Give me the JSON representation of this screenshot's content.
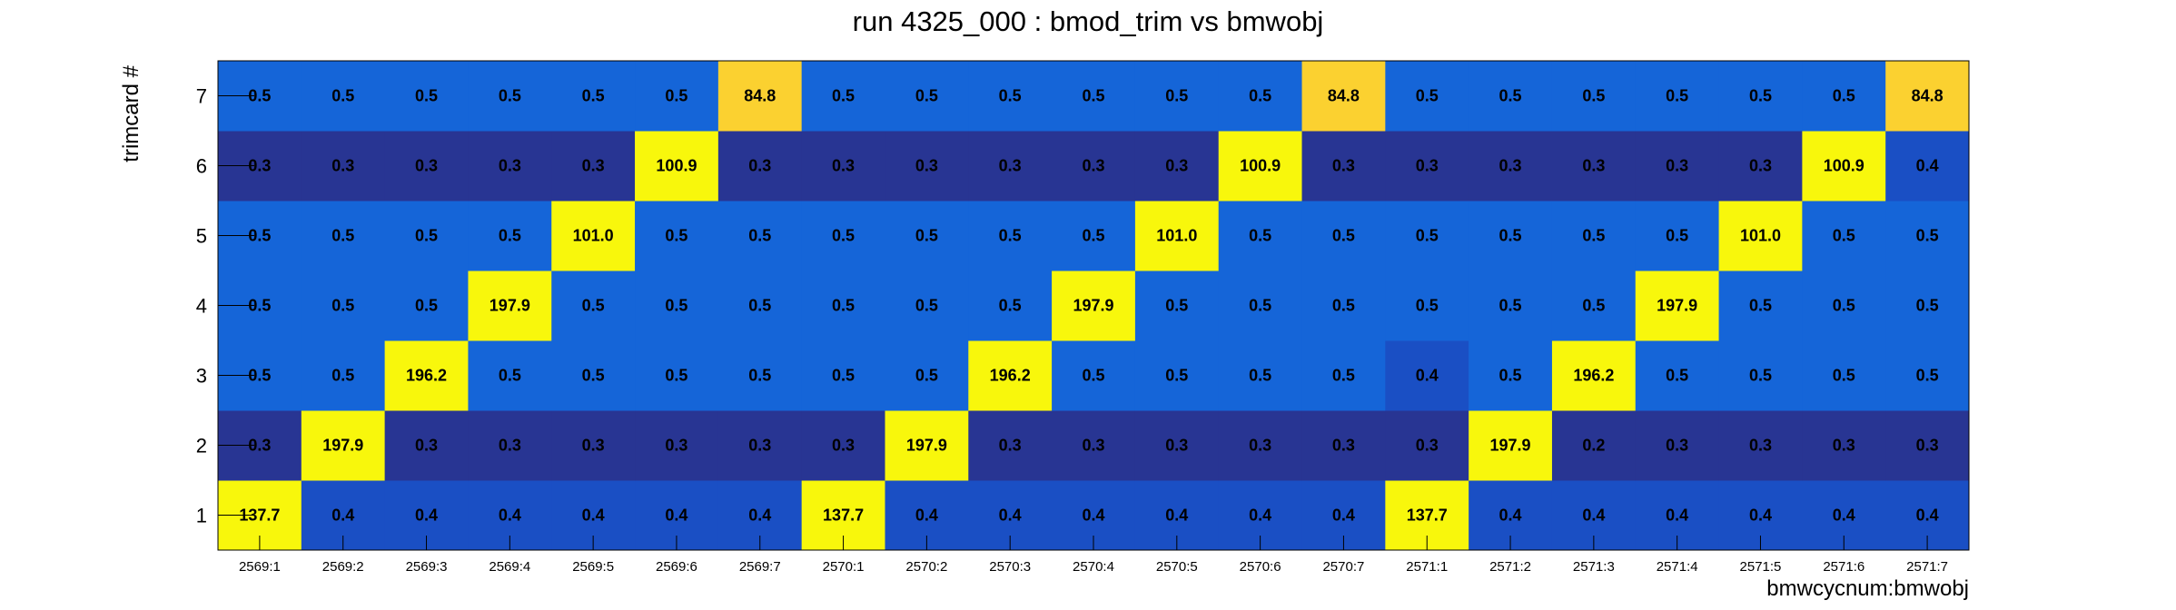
{
  "chart_data": {
    "type": "heatmap",
    "title": "run 4325_000 : bmod_trim vs bmwobj",
    "xlabel": "bmwcycnum:bmwobj",
    "ylabel": "trimcard #",
    "x_categories": [
      "2569:1",
      "2569:2",
      "2569:3",
      "2569:4",
      "2569:5",
      "2569:6",
      "2569:7",
      "2570:1",
      "2570:2",
      "2570:3",
      "2570:4",
      "2570:5",
      "2570:6",
      "2570:7",
      "2571:1",
      "2571:2",
      "2571:3",
      "2571:4",
      "2571:5",
      "2571:6",
      "2571:7"
    ],
    "y_categories": [
      "1",
      "2",
      "3",
      "4",
      "5",
      "6",
      "7"
    ],
    "values": [
      [
        137.7,
        0.4,
        0.4,
        0.4,
        0.4,
        0.4,
        0.4,
        137.7,
        0.4,
        0.4,
        0.4,
        0.4,
        0.4,
        0.4,
        137.7,
        0.4,
        0.4,
        0.4,
        0.4,
        0.4,
        0.4
      ],
      [
        0.3,
        197.9,
        0.3,
        0.3,
        0.3,
        0.3,
        0.3,
        0.3,
        197.9,
        0.3,
        0.3,
        0.3,
        0.3,
        0.3,
        0.3,
        197.9,
        0.2,
        0.3,
        0.3,
        0.3,
        0.3
      ],
      [
        0.5,
        0.5,
        196.2,
        0.5,
        0.5,
        0.5,
        0.5,
        0.5,
        0.5,
        196.2,
        0.5,
        0.5,
        0.5,
        0.5,
        0.4,
        0.5,
        196.2,
        0.5,
        0.5,
        0.5,
        0.5
      ],
      [
        0.5,
        0.5,
        0.5,
        197.9,
        0.5,
        0.5,
        0.5,
        0.5,
        0.5,
        0.5,
        197.9,
        0.5,
        0.5,
        0.5,
        0.5,
        0.5,
        0.5,
        197.9,
        0.5,
        0.5,
        0.5
      ],
      [
        0.5,
        0.5,
        0.5,
        0.5,
        101.0,
        0.5,
        0.5,
        0.5,
        0.5,
        0.5,
        0.5,
        101.0,
        0.5,
        0.5,
        0.5,
        0.5,
        0.5,
        0.5,
        101.0,
        0.5,
        0.5
      ],
      [
        0.3,
        0.3,
        0.3,
        0.3,
        0.3,
        100.9,
        0.3,
        0.3,
        0.3,
        0.3,
        0.3,
        0.3,
        100.9,
        0.3,
        0.3,
        0.3,
        0.3,
        0.3,
        0.3,
        100.9,
        0.4
      ],
      [
        0.5,
        0.5,
        0.5,
        0.5,
        0.5,
        0.5,
        84.8,
        0.5,
        0.5,
        0.5,
        0.5,
        0.5,
        0.5,
        84.8,
        0.5,
        0.5,
        0.5,
        0.5,
        0.5,
        0.5,
        84.8
      ]
    ],
    "colors": {
      "low": "#283593",
      "low_mid": "#1a4fc4",
      "mid": "#1565d8",
      "high": "#f8f70c",
      "high_alt": "#fbd130"
    },
    "grid": false,
    "legend": "none"
  }
}
